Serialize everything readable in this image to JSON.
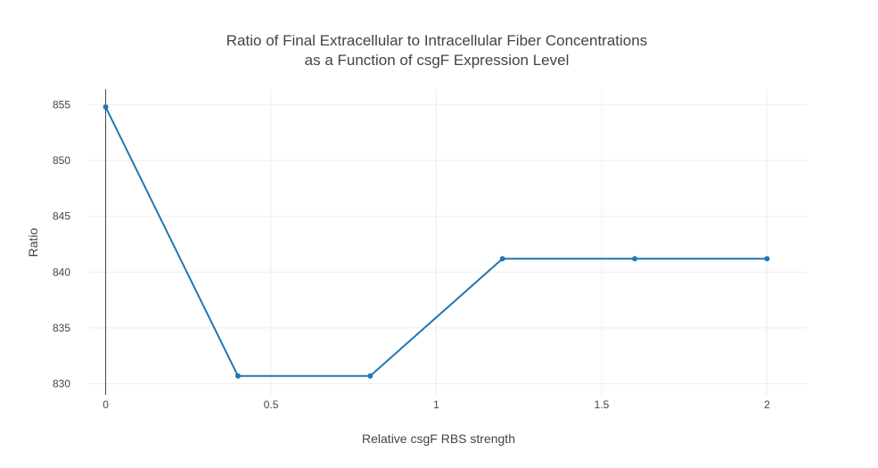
{
  "chart_data": {
    "type": "line",
    "title_lines": [
      "Ratio of Final Extracellular to Intracellular Fiber Concentrations",
      "as a Function of csgF Expression Level"
    ],
    "xlabel": "Relative csgF RBS strength",
    "ylabel": "Ratio",
    "x": [
      0,
      0.4,
      0.8,
      1.2,
      1.6,
      2
    ],
    "series": [
      {
        "values": [
          854.8,
          830.7,
          830.7,
          841.2,
          841.2,
          841.2
        ]
      }
    ],
    "xlim": [
      -0.05,
      2.12
    ],
    "ylim": [
      829.0,
      856.4
    ],
    "xticks": [
      0,
      0.5,
      1,
      1.5,
      2
    ],
    "xtick_labels": [
      "0",
      "0.5",
      "1",
      "1.5",
      "2"
    ],
    "yticks": [
      830,
      835,
      840,
      845,
      850,
      855
    ],
    "ytick_labels": [
      "830",
      "835",
      "840",
      "845",
      "850",
      "855"
    ],
    "grid": true,
    "legend": "none",
    "colors": {
      "line": "#1f77b4",
      "grid": "#eeeeee",
      "zero_line": "#444444",
      "text": "#444444"
    }
  }
}
